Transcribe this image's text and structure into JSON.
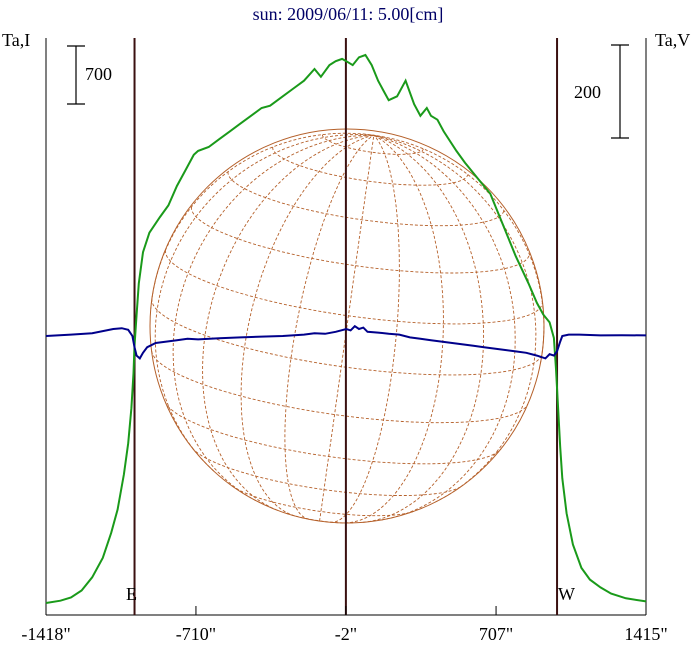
{
  "chart_data": {
    "type": "line",
    "title": "sun: 2009/06/11: 5.00[cm]",
    "left_axis_label": "Ta,I",
    "right_axis_label": "Ta,V",
    "scale_bar_left": "700",
    "scale_bar_right": "200",
    "limb_labels": {
      "east": "E",
      "west": "W"
    },
    "x_ticks": [
      {
        "value": -1418,
        "label": "-1418\""
      },
      {
        "value": -710,
        "label": "-710\""
      },
      {
        "value": -2,
        "label": "-2\""
      },
      {
        "value": 707,
        "label": "707\""
      },
      {
        "value": 1415,
        "label": "1415\""
      }
    ],
    "xlim": [
      -1418,
      1415
    ],
    "vertical_markers": [
      -1000,
      -2,
      995
    ],
    "grid": false,
    "colors": {
      "intensity": "#1a9a1a",
      "polarization": "#00008b",
      "markers": "#3a1010",
      "disk": "#b5602a",
      "title": "#000066"
    },
    "series": [
      {
        "name": "Ta,I",
        "x": [
          -1418,
          -1350,
          -1300,
          -1250,
          -1200,
          -1150,
          -1110,
          -1080,
          -1050,
          -1030,
          -1015,
          -1005,
          -1000,
          -990,
          -980,
          -960,
          -930,
          -880,
          -840,
          -800,
          -760,
          -720,
          -700,
          -650,
          -600,
          -550,
          -500,
          -450,
          -400,
          -360,
          -300,
          -250,
          -200,
          -150,
          -120,
          -80,
          -50,
          -20,
          0,
          30,
          60,
          90,
          120,
          150,
          180,
          200,
          240,
          280,
          320,
          350,
          380,
          400,
          430,
          460,
          520,
          560,
          620,
          680,
          740,
          800,
          860,
          900,
          930,
          960,
          980,
          990,
          1000,
          1010,
          1020,
          1040,
          1070,
          1110,
          1150,
          1200,
          1250,
          1320,
          1415
        ],
        "y": [
          0,
          30,
          70,
          160,
          330,
          580,
          900,
          1200,
          1650,
          2050,
          2500,
          2950,
          3300,
          3700,
          4100,
          4500,
          4750,
          4950,
          5100,
          5350,
          5550,
          5750,
          5800,
          5850,
          5950,
          6050,
          6150,
          6250,
          6350,
          6380,
          6500,
          6600,
          6700,
          6850,
          6750,
          6900,
          6950,
          6980,
          6950,
          6900,
          7000,
          7030,
          6900,
          6700,
          6550,
          6450,
          6500,
          6700,
          6400,
          6250,
          6350,
          6250,
          6200,
          6050,
          5800,
          5650,
          5450,
          5250,
          4850,
          4450,
          4100,
          3850,
          3700,
          3600,
          3400,
          3000,
          2500,
          2000,
          1600,
          1150,
          750,
          450,
          300,
          200,
          120,
          60,
          20
        ]
      },
      {
        "name": "Ta,V",
        "x": [
          -1418,
          -1300,
          -1200,
          -1100,
          -1060,
          -1030,
          -1010,
          -1000,
          -990,
          -975,
          -960,
          -940,
          -900,
          -850,
          -800,
          -750,
          -700,
          -600,
          -500,
          -400,
          -300,
          -200,
          -150,
          -100,
          -50,
          0,
          20,
          40,
          60,
          80,
          100,
          150,
          200,
          250,
          300,
          350,
          400,
          450,
          500,
          550,
          600,
          650,
          700,
          750,
          800,
          850,
          900,
          940,
          960,
          980,
          995,
          1010,
          1020,
          1050,
          1100,
          1200,
          1300,
          1415
        ],
        "y": [
          0,
          5,
          10,
          25,
          28,
          22,
          0,
          -40,
          -70,
          -80,
          -60,
          -40,
          -25,
          -20,
          -15,
          -10,
          -12,
          -8,
          -5,
          -2,
          0,
          5,
          10,
          8,
          15,
          25,
          20,
          35,
          25,
          30,
          15,
          12,
          8,
          5,
          -5,
          -10,
          -15,
          -20,
          -25,
          -30,
          -35,
          -40,
          -45,
          -50,
          -55,
          -60,
          -70,
          -80,
          -65,
          -70,
          -55,
          -20,
          0,
          5,
          5,
          2,
          3,
          2
        ]
      }
    ]
  }
}
